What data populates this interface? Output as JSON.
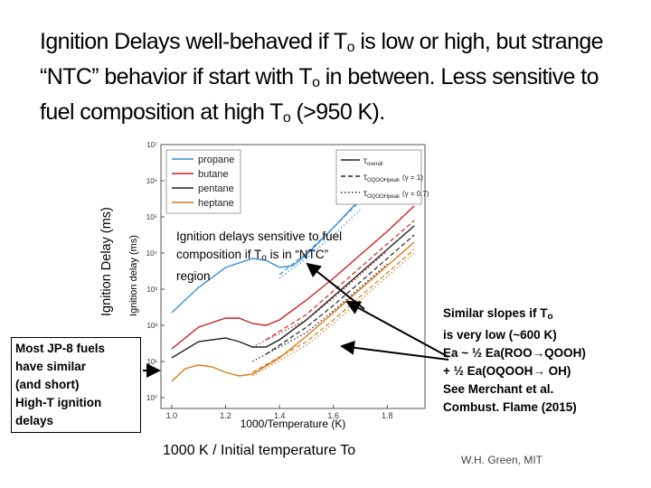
{
  "slide": {
    "title_part1": "Ignition Delays well-behaved if T",
    "title_sub1": "o",
    "title_part2": " is low or high, but strange “NTC” behavior if start with T",
    "title_sub2": "o",
    "title_part3": " in between. Less sensitive to fuel composition at high T",
    "title_sub3": "o",
    "title_part4": " (>950 K).",
    "outer_ylabel": "Ignition Delay (ms)",
    "mid_note_part1": "Ignition delays sensitive to fuel composition if T",
    "mid_note_sub": "o",
    "mid_note_part2": " is in “NTC” region",
    "left_callout_lines": [
      "Most JP-8 fuels",
      "have similar",
      "(and short)",
      "High-T ignition",
      "delays"
    ],
    "right_callout_line1": "Similar slopes if T",
    "right_callout_line1_sub": "o",
    "right_callout_line2": "is very low (~600 K)",
    "right_callout_line3": "Ea ~ ½ Ea(ROO→QOOH)",
    "right_callout_line4": "+ ½ Ea(OQOOH→ OH)",
    "right_callout_line5": "See Merchant et al.",
    "right_callout_line6": "Combust. Flame (2015)",
    "bottom_label": "1000 K / Initial temperature To",
    "credit": "W.H. Green, MIT"
  },
  "chart_data": {
    "type": "line",
    "xlabel": "1000/Temperature (K)",
    "ylabel": "Ignition delay (ms)",
    "xlim": [
      0.96,
      1.94
    ],
    "ylim_log10": [
      -0.3,
      7
    ],
    "y_scale": "log",
    "x_ticks": [
      "1.0",
      "1.2",
      "1.4",
      "1.6",
      "1.8"
    ],
    "x_tick_values": [
      1.0,
      1.2,
      1.4,
      1.6,
      1.8
    ],
    "y_ticks": [
      "10⁰",
      "10¹",
      "10²",
      "10³",
      "10⁴",
      "10⁵",
      "10⁶",
      "10⁷"
    ],
    "y_tick_exponents": [
      0,
      1,
      2,
      3,
      4,
      5,
      6,
      7
    ],
    "grid": false,
    "legend_fuels_position": "top-left",
    "legend_styles_position": "top-right",
    "legend_styles": [
      {
        "label": "τ",
        "sub": "overall",
        "extra": "",
        "dash": "solid"
      },
      {
        "label": "τ",
        "sub": "OQOOHpeak",
        "extra": "(γ = 1)",
        "dash": "dashed"
      },
      {
        "label": "τ",
        "sub": "OQOOHpeak",
        "extra": "(γ = 0.7)",
        "dash": "dashdot"
      }
    ],
    "series": [
      {
        "name": "propane",
        "color": "#3a8fd6",
        "overall": {
          "x": [
            1.0,
            1.1,
            1.2,
            1.3,
            1.35,
            1.4,
            1.45,
            1.5,
            1.6,
            1.7,
            1.8
          ],
          "y_log10": [
            2.35,
            3.05,
            3.6,
            3.85,
            3.8,
            3.6,
            3.65,
            3.95,
            4.7,
            5.5,
            6.2
          ]
        },
        "gamma1": {
          "x": [
            1.4,
            1.5,
            1.6,
            1.7,
            1.8
          ],
          "y_log10": [
            3.4,
            4.0,
            4.7,
            5.45,
            6.15
          ]
        },
        "gamma07": {
          "x": [
            1.4,
            1.5,
            1.6,
            1.7
          ],
          "y_log10": [
            3.3,
            3.85,
            4.5,
            5.2
          ]
        }
      },
      {
        "name": "butane",
        "color": "#cc2222",
        "overall": {
          "x": [
            1.0,
            1.1,
            1.2,
            1.25,
            1.3,
            1.35,
            1.4,
            1.5,
            1.6,
            1.7,
            1.8,
            1.9
          ],
          "y_log10": [
            1.35,
            1.95,
            2.2,
            2.2,
            2.05,
            2.0,
            2.15,
            2.7,
            3.3,
            3.95,
            4.6,
            5.3
          ]
        },
        "gamma1": {
          "x": [
            1.35,
            1.5,
            1.6,
            1.7,
            1.8,
            1.9
          ],
          "y_log10": [
            1.6,
            2.3,
            2.95,
            3.6,
            4.25,
            4.9
          ]
        },
        "gamma07": {
          "x": [
            1.3,
            1.5,
            1.6,
            1.7,
            1.8
          ],
          "y_log10": [
            1.4,
            2.15,
            2.75,
            3.4,
            4.05
          ]
        }
      },
      {
        "name": "pentane",
        "color": "#222222",
        "overall": {
          "x": [
            1.0,
            1.1,
            1.2,
            1.25,
            1.3,
            1.35,
            1.4,
            1.5,
            1.6,
            1.7,
            1.8,
            1.9
          ],
          "y_log10": [
            1.1,
            1.55,
            1.65,
            1.55,
            1.4,
            1.4,
            1.6,
            2.15,
            2.8,
            3.45,
            4.1,
            4.75
          ]
        },
        "gamma1": {
          "x": [
            1.35,
            1.5,
            1.6,
            1.7,
            1.8,
            1.9
          ],
          "y_log10": [
            1.2,
            1.95,
            2.55,
            3.2,
            3.85,
            4.5
          ]
        },
        "gamma07": {
          "x": [
            1.3,
            1.5,
            1.6,
            1.7,
            1.8
          ],
          "y_log10": [
            1.0,
            1.8,
            2.4,
            3.05,
            3.7
          ]
        }
      },
      {
        "name": "heptane",
        "color": "#d9781a",
        "overall": {
          "x": [
            1.0,
            1.05,
            1.1,
            1.15,
            1.2,
            1.25,
            1.3,
            1.4,
            1.5,
            1.6,
            1.7,
            1.8,
            1.9
          ],
          "y_log10": [
            0.45,
            0.8,
            0.9,
            0.85,
            0.7,
            0.6,
            0.65,
            1.1,
            1.7,
            2.35,
            3.0,
            3.65,
            4.3
          ]
        },
        "gamma1": {
          "x": [
            1.3,
            1.5,
            1.6,
            1.7,
            1.8,
            1.9
          ],
          "y_log10": [
            0.7,
            1.55,
            2.15,
            2.8,
            3.45,
            4.1
          ]
        },
        "gamma07": {
          "x": [
            1.3,
            1.5,
            1.6,
            1.7,
            1.8,
            1.9
          ],
          "y_log10": [
            0.6,
            1.45,
            2.05,
            2.7,
            3.35,
            4.0
          ]
        }
      }
    ]
  }
}
